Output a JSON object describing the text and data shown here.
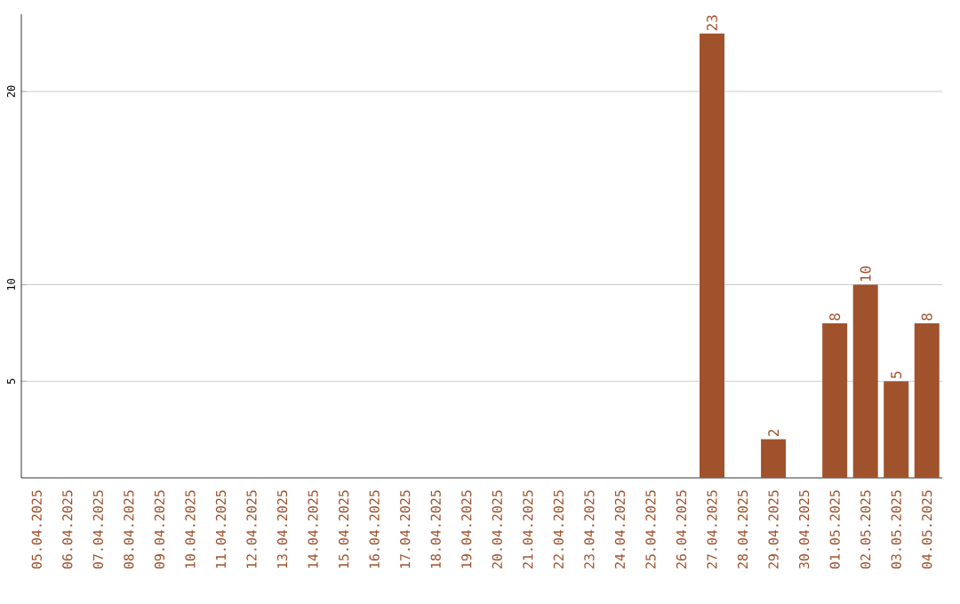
{
  "chart_data": {
    "type": "bar",
    "categories": [
      "05.04.2025",
      "06.04.2025",
      "07.04.2025",
      "08.04.2025",
      "09.04.2025",
      "10.04.2025",
      "11.04.2025",
      "12.04.2025",
      "13.04.2025",
      "14.04.2025",
      "15.04.2025",
      "16.04.2025",
      "17.04.2025",
      "18.04.2025",
      "19.04.2025",
      "20.04.2025",
      "21.04.2025",
      "22.04.2025",
      "23.04.2025",
      "24.04.2025",
      "25.04.2025",
      "26.04.2025",
      "27.04.2025",
      "28.04.2025",
      "29.04.2025",
      "30.04.2025",
      "01.05.2025",
      "02.05.2025",
      "03.05.2025",
      "04.05.2025"
    ],
    "values": [
      0,
      0,
      0,
      0,
      0,
      0,
      0,
      0,
      0,
      0,
      0,
      0,
      0,
      0,
      0,
      0,
      0,
      0,
      0,
      0,
      0,
      0,
      23,
      0,
      2,
      0,
      8,
      10,
      5,
      8
    ],
    "value_labels": [
      null,
      null,
      null,
      null,
      null,
      null,
      null,
      null,
      null,
      null,
      null,
      null,
      null,
      null,
      null,
      null,
      null,
      null,
      null,
      null,
      null,
      null,
      "23",
      null,
      "2",
      null,
      "8",
      "10",
      "5",
      "8"
    ],
    "color": "#a0522d",
    "ylim": [
      0,
      24
    ],
    "yticks": [
      5,
      10,
      20
    ],
    "grid": "y"
  }
}
